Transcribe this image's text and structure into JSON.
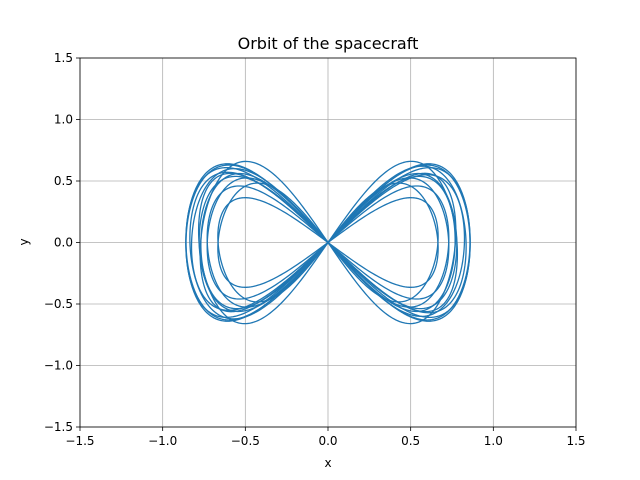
{
  "chart_data": {
    "type": "line",
    "title": "Orbit of the spacecraft",
    "xlabel": "x",
    "ylabel": "y",
    "xlim": [
      -1.5,
      1.5
    ],
    "ylim": [
      -1.5,
      1.5
    ],
    "xticks": [
      -1.5,
      -1.0,
      -0.5,
      0.0,
      0.5,
      1.0,
      1.5
    ],
    "yticks": [
      -1.5,
      -1.0,
      -0.5,
      0.0,
      0.5,
      1.0,
      1.5
    ],
    "xtick_labels": [
      "−1.5",
      "−1.0",
      "−0.5",
      "0.0",
      "0.5",
      "1.0",
      "1.5"
    ],
    "ytick_labels": [
      "−1.5",
      "−1.0",
      "−0.5",
      "0.0",
      "0.5",
      "1.0",
      "1.5"
    ],
    "grid": true,
    "series": [
      {
        "color": "#1f77b4",
        "loops": [
          {
            "a": 0.86,
            "b": 0.64,
            "rot": 0.0
          },
          {
            "a": 0.84,
            "b": 0.6,
            "rot": 0.12
          },
          {
            "a": 0.83,
            "b": 0.58,
            "rot": -0.12
          },
          {
            "a": 0.8,
            "b": 0.63,
            "rot": 0.25
          },
          {
            "a": 0.79,
            "b": 0.63,
            "rot": -0.25
          },
          {
            "a": 0.78,
            "b": 0.55,
            "rot": 0.06
          },
          {
            "a": 0.77,
            "b": 0.55,
            "rot": -0.06
          },
          {
            "a": 0.74,
            "b": 0.5,
            "rot": 0.18
          },
          {
            "a": 0.74,
            "b": 0.5,
            "rot": -0.18
          },
          {
            "a": 0.7,
            "b": 0.45,
            "rot": 0.35
          },
          {
            "a": 0.7,
            "b": 0.45,
            "rot": -0.35
          },
          {
            "a": 0.86,
            "b": 0.62,
            "rot": 0.05
          },
          {
            "a": 0.86,
            "b": 0.62,
            "rot": -0.05
          }
        ]
      }
    ]
  }
}
